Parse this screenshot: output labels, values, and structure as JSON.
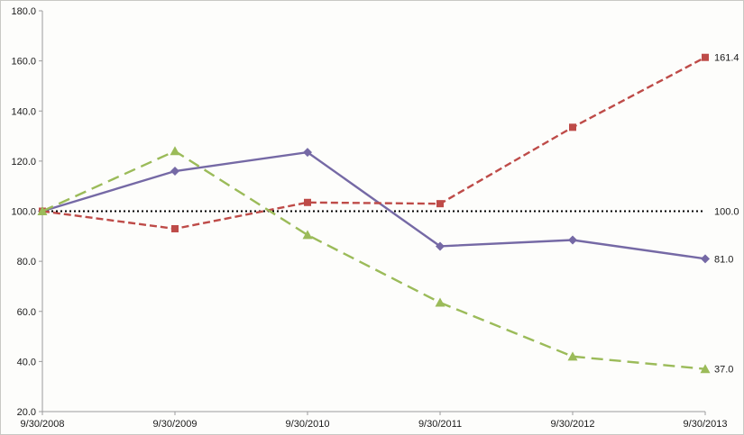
{
  "chart_data": {
    "type": "line",
    "title": "",
    "xlabel": "",
    "ylabel": "",
    "grid": false,
    "legend": "none",
    "ylim": [
      20.0,
      180.0
    ],
    "ytick_step": 20,
    "ytick_labels": [
      "20.0",
      "40.0",
      "60.0",
      "80.0",
      "100.0",
      "120.0",
      "140.0",
      "160.0",
      "180.0"
    ],
    "x": [
      "9/30/2008",
      "9/30/2009",
      "9/30/2010",
      "9/30/2011",
      "9/30/2012",
      "9/30/2013"
    ],
    "series": [
      {
        "name": "series-purple-diamond",
        "color": "#7569A5",
        "style": "solid",
        "marker": "diamond",
        "values": [
          100.0,
          116.0,
          123.5,
          86.0,
          88.5,
          81.0
        ],
        "end_label": "81.0"
      },
      {
        "name": "series-red-square",
        "color": "#BE4B48",
        "style": "dashed",
        "marker": "square",
        "values": [
          100.0,
          93.0,
          103.5,
          103.0,
          133.5,
          161.4
        ],
        "end_label": "161.4"
      },
      {
        "name": "series-green-triangle",
        "color": "#9BBB59",
        "style": "long-dash",
        "marker": "triangle",
        "values": [
          100.0,
          124.0,
          90.5,
          63.5,
          42.0,
          37.0
        ],
        "end_label": "37.0"
      }
    ],
    "baseline": {
      "value": 100.0,
      "color": "#000000",
      "style": "dotted",
      "end_label": "100.0"
    },
    "axis_color": "#9c9c9c"
  }
}
